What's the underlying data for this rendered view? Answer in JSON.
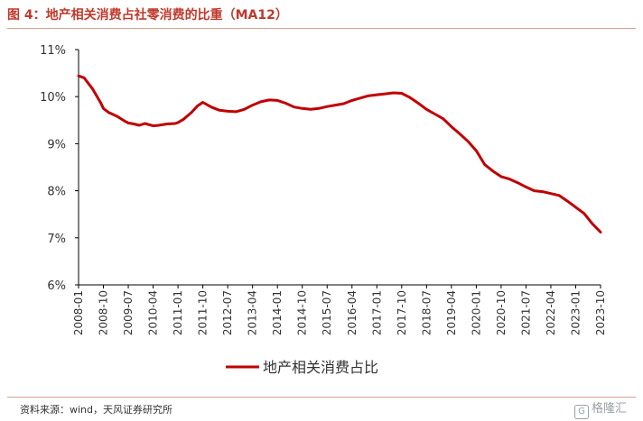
{
  "title": "图 4：地产相关消费占社零消费的比重（MA12）",
  "source": "资料来源：wind，天风证券研究所",
  "watermark": {
    "icon": "G",
    "text": "格隆汇"
  },
  "colors": {
    "accent": "#c0392b",
    "series": "#c00000"
  },
  "chart_data": {
    "type": "line",
    "title": "",
    "xlabel": "",
    "ylabel": "",
    "ylim": [
      6,
      11
    ],
    "ytick_values": [
      6,
      7,
      8,
      9,
      10,
      11
    ],
    "ytick_labels": [
      "6%",
      "7%",
      "8%",
      "9%",
      "10%",
      "11%"
    ],
    "xtick_labels": [
      "2008-01",
      "2008-10",
      "2009-07",
      "2010-04",
      "2011-01",
      "2011-10",
      "2012-07",
      "2013-04",
      "2014-01",
      "2014-10",
      "2015-07",
      "2016-04",
      "2017-01",
      "2017-10",
      "2018-07",
      "2019-04",
      "2020-01",
      "2020-10",
      "2021-07",
      "2022-04",
      "2023-01",
      "2023-10"
    ],
    "grid": false,
    "legend_position": "bottom",
    "series": [
      {
        "name": "地产相关消费占比",
        "x": [
          "2008-01",
          "2008-03",
          "2008-06",
          "2008-09",
          "2008-10",
          "2008-12",
          "2009-03",
          "2009-06",
          "2009-07",
          "2009-09",
          "2009-11",
          "2010-01",
          "2010-04",
          "2010-06",
          "2010-09",
          "2010-12",
          "2011-01",
          "2011-03",
          "2011-06",
          "2011-08",
          "2011-10",
          "2012-01",
          "2012-04",
          "2012-07",
          "2012-10",
          "2013-01",
          "2013-04",
          "2013-07",
          "2013-10",
          "2014-01",
          "2014-04",
          "2014-07",
          "2014-10",
          "2015-01",
          "2015-04",
          "2015-07",
          "2015-10",
          "2016-01",
          "2016-04",
          "2016-07",
          "2016-10",
          "2017-01",
          "2017-04",
          "2017-07",
          "2017-10",
          "2018-01",
          "2018-04",
          "2018-07",
          "2018-10",
          "2019-01",
          "2019-04",
          "2019-07",
          "2019-10",
          "2020-01",
          "2020-04",
          "2020-07",
          "2020-10",
          "2021-01",
          "2021-04",
          "2021-07",
          "2021-10",
          "2022-01",
          "2022-04",
          "2022-07",
          "2022-10",
          "2023-01",
          "2023-04",
          "2023-07",
          "2023-10"
        ],
        "values": [
          10.44,
          10.4,
          10.17,
          9.87,
          9.75,
          9.66,
          9.58,
          9.47,
          9.44,
          9.42,
          9.39,
          9.43,
          9.38,
          9.39,
          9.42,
          9.43,
          9.45,
          9.52,
          9.67,
          9.8,
          9.88,
          9.78,
          9.71,
          9.69,
          9.68,
          9.73,
          9.82,
          9.89,
          9.93,
          9.92,
          9.86,
          9.78,
          9.75,
          9.73,
          9.75,
          9.79,
          9.82,
          9.85,
          9.92,
          9.97,
          10.02,
          10.04,
          10.06,
          10.08,
          10.07,
          9.98,
          9.86,
          9.73,
          9.63,
          9.53,
          9.36,
          9.21,
          9.05,
          8.85,
          8.56,
          8.42,
          8.3,
          8.25,
          8.17,
          8.08,
          8.0,
          7.98,
          7.94,
          7.9,
          7.78,
          7.65,
          7.52,
          7.3,
          7.12
        ]
      }
    ]
  }
}
